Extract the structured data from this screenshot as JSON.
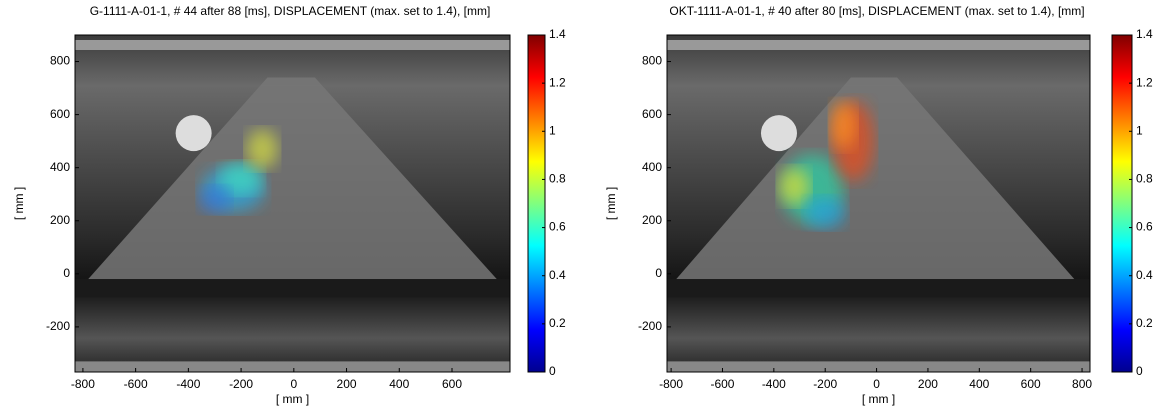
{
  "chart_data": [
    {
      "type": "image",
      "title": "G-1111-A-01-1, # 44 after 88 [ms], DISPLACEMENT (max. set to 1.4), [mm]",
      "xlabel": "[ mm ]",
      "ylabel": "[ mm ]",
      "xlim": [
        -830,
        820
      ],
      "ylim": [
        -370,
        900
      ],
      "xticks": [
        -800,
        -600,
        -400,
        -200,
        0,
        200,
        400,
        600
      ],
      "yticks": [
        -200,
        0,
        200,
        400,
        600,
        800
      ],
      "colormap": "jet",
      "clim": [
        0,
        1.4
      ],
      "cticks": [
        0,
        0.2,
        0.4,
        0.6,
        0.8,
        1,
        1.2,
        1.4
      ]
    },
    {
      "type": "image",
      "title": "OKT-1111-A-01-1, # 40 after 80 [ms], DISPLACEMENT (max. set to 1.4), [mm]",
      "xlabel": "[ mm ]",
      "ylabel": "[ mm ]",
      "xlim": [
        -816,
        831
      ],
      "ylim": [
        -370,
        900
      ],
      "xticks": [
        -800,
        -600,
        -400,
        -200,
        0,
        200,
        400,
        600,
        800
      ],
      "yticks": [
        -200,
        0,
        200,
        400,
        600,
        800
      ],
      "colormap": "jet",
      "clim": [
        0,
        1.4
      ],
      "cticks": [
        0,
        0.2,
        0.4,
        0.6,
        0.8,
        1,
        1.2,
        1.4
      ]
    }
  ]
}
